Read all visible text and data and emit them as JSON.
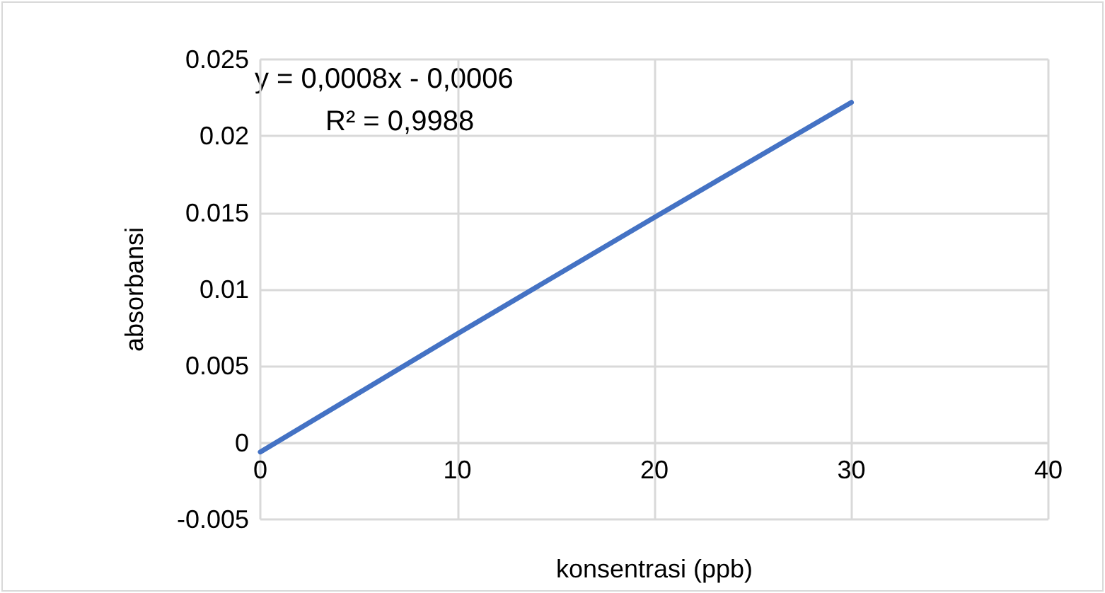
{
  "chart_data": {
    "type": "line",
    "xlabel": "konsentrasi (ppb)",
    "ylabel": "absorbansi",
    "annotations": [
      "y = 0,0008x - 0,0006",
      "R² = 0,9988"
    ],
    "x": [
      0,
      10,
      20,
      30
    ],
    "series": [
      {
        "color": "#4472c4",
        "values": [
          -0.0006,
          0.0071,
          0.0147,
          0.0222
        ]
      }
    ],
    "xlim": [
      0,
      40
    ],
    "xticks": [
      0,
      10,
      20,
      30,
      40
    ],
    "ylim": [
      -0.005,
      0.025
    ],
    "yticks": [
      -0.005,
      0,
      0.005,
      0.01,
      0.015,
      0.02,
      0.025
    ],
    "grid": true,
    "marker": "none",
    "line_style": "solid"
  }
}
